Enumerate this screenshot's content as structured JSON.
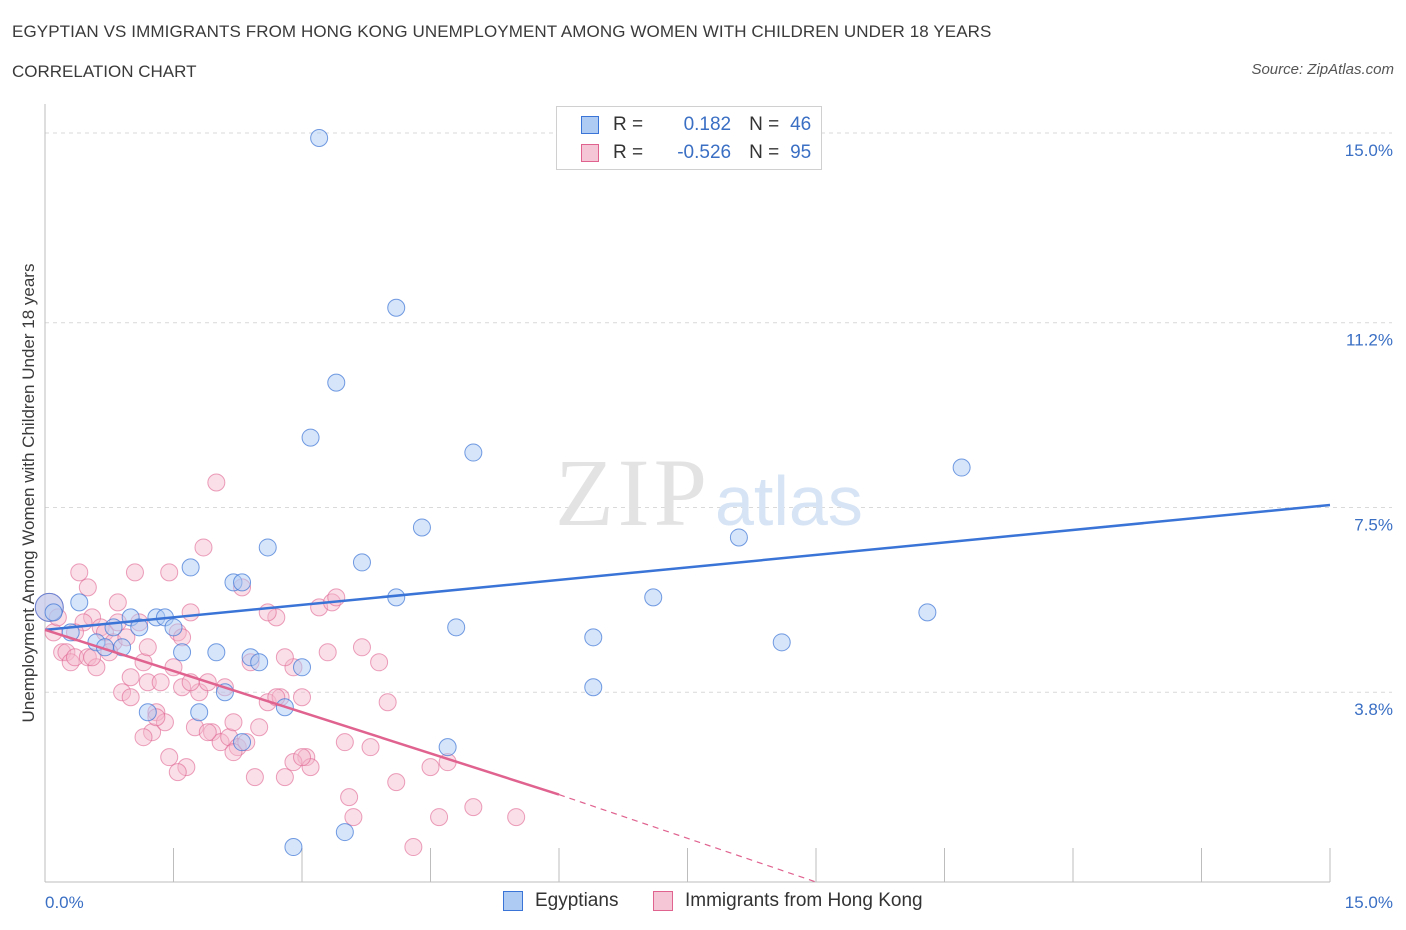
{
  "title": "EGYPTIAN VS IMMIGRANTS FROM HONG KONG UNEMPLOYMENT AMONG WOMEN WITH CHILDREN UNDER 18 YEARS",
  "subtitle": "CORRELATION CHART",
  "source": "Source: ZipAtlas.com",
  "watermark": {
    "zip": "ZIP",
    "atlas": "atlas"
  },
  "legend": {
    "rows": [
      {
        "r_label": "R =",
        "r_value": "0.182",
        "n_label": "N =",
        "n_value": "46"
      },
      {
        "r_label": "R =",
        "r_value": "-0.526",
        "n_label": "N =",
        "n_value": "95"
      }
    ]
  },
  "bottom_legend": {
    "egyptians": "Egyptians",
    "hongkong": "Immigrants from Hong Kong"
  },
  "colors": {
    "blue": "#3a74d6",
    "blue_fill": "#aecbf3",
    "pink": "#e0628f",
    "pink_fill": "#f5b7cb",
    "axis_text": "#3a6fc4",
    "grid": "#d9d9d9"
  },
  "chart_data": {
    "type": "scatter",
    "ylabel": "Unemployment Among Women with Children Under 18 years",
    "xlabel": "",
    "xlim": [
      0,
      15
    ],
    "ylim": [
      0,
      15.3
    ],
    "x_tick_labels": {
      "left": "0.0%",
      "right": "15.0%"
    },
    "y_ticks": [
      {
        "value": 15.0,
        "label": "15.0%"
      },
      {
        "value": 11.2,
        "label": "11.2%"
      },
      {
        "value": 7.5,
        "label": "7.5%"
      },
      {
        "value": 3.8,
        "label": "3.8%"
      }
    ],
    "series": [
      {
        "name": "Egyptians",
        "color": "#3a74d6",
        "points": [
          [
            0.05,
            5.5
          ],
          [
            0.1,
            5.4
          ],
          [
            0.3,
            5.0
          ],
          [
            0.4,
            5.6
          ],
          [
            0.6,
            4.8
          ],
          [
            0.7,
            4.7
          ],
          [
            0.8,
            5.1
          ],
          [
            1.0,
            5.3
          ],
          [
            1.1,
            5.1
          ],
          [
            1.3,
            5.3
          ],
          [
            1.4,
            5.3
          ],
          [
            1.5,
            5.1
          ],
          [
            1.7,
            6.3
          ],
          [
            2.0,
            4.6
          ],
          [
            2.2,
            6.0
          ],
          [
            2.3,
            6.0
          ],
          [
            2.1,
            3.8
          ],
          [
            2.3,
            2.8
          ],
          [
            2.4,
            4.5
          ],
          [
            2.6,
            6.7
          ],
          [
            2.8,
            3.5
          ],
          [
            3.0,
            4.3
          ],
          [
            3.1,
            8.9
          ],
          [
            3.2,
            14.9
          ],
          [
            3.4,
            10.0
          ],
          [
            3.5,
            1.0
          ],
          [
            3.7,
            6.4
          ],
          [
            4.1,
            11.5
          ],
          [
            4.1,
            5.7
          ],
          [
            4.4,
            7.1
          ],
          [
            4.7,
            2.7
          ],
          [
            4.8,
            5.1
          ],
          [
            5.0,
            8.6
          ],
          [
            6.4,
            3.9
          ],
          [
            6.4,
            4.9
          ],
          [
            7.1,
            5.7
          ],
          [
            8.1,
            6.9
          ],
          [
            8.6,
            4.8
          ],
          [
            10.3,
            5.4
          ],
          [
            10.7,
            8.3
          ],
          [
            2.9,
            0.7
          ],
          [
            0.9,
            4.7
          ],
          [
            1.6,
            4.6
          ],
          [
            1.2,
            3.4
          ],
          [
            1.8,
            3.4
          ],
          [
            2.5,
            4.4
          ]
        ],
        "trend": {
          "x0": 0,
          "y0": 5.05,
          "x1": 15,
          "y1": 7.55
        }
      },
      {
        "name": "Immigrants from Hong Kong",
        "color": "#e0628f",
        "points": [
          [
            0.05,
            5.5
          ],
          [
            0.1,
            5.0
          ],
          [
            0.15,
            5.3
          ],
          [
            0.2,
            4.6
          ],
          [
            0.25,
            4.6
          ],
          [
            0.3,
            4.4
          ],
          [
            0.35,
            4.5
          ],
          [
            0.4,
            6.2
          ],
          [
            0.5,
            4.5
          ],
          [
            0.5,
            5.9
          ],
          [
            0.55,
            5.3
          ],
          [
            0.6,
            4.3
          ],
          [
            0.65,
            5.1
          ],
          [
            0.7,
            5.0
          ],
          [
            0.8,
            4.8
          ],
          [
            0.85,
            5.6
          ],
          [
            0.9,
            3.8
          ],
          [
            0.95,
            4.9
          ],
          [
            1.0,
            3.7
          ],
          [
            1.05,
            6.2
          ],
          [
            1.1,
            5.2
          ],
          [
            1.15,
            4.4
          ],
          [
            1.2,
            4.0
          ],
          [
            1.25,
            3.0
          ],
          [
            1.3,
            3.4
          ],
          [
            1.35,
            4.0
          ],
          [
            1.4,
            3.2
          ],
          [
            1.45,
            6.2
          ],
          [
            1.5,
            4.3
          ],
          [
            1.55,
            5.0
          ],
          [
            1.6,
            3.9
          ],
          [
            1.65,
            2.3
          ],
          [
            1.7,
            5.4
          ],
          [
            1.75,
            3.1
          ],
          [
            1.8,
            3.8
          ],
          [
            1.85,
            6.7
          ],
          [
            1.9,
            4.0
          ],
          [
            1.95,
            3.0
          ],
          [
            2.0,
            8.0
          ],
          [
            2.05,
            2.8
          ],
          [
            2.1,
            3.9
          ],
          [
            2.15,
            2.9
          ],
          [
            2.2,
            3.2
          ],
          [
            2.25,
            2.7
          ],
          [
            2.3,
            5.9
          ],
          [
            2.4,
            4.4
          ],
          [
            2.5,
            3.1
          ],
          [
            2.6,
            3.6
          ],
          [
            2.7,
            5.3
          ],
          [
            2.75,
            3.7
          ],
          [
            2.8,
            2.1
          ],
          [
            2.9,
            4.3
          ],
          [
            3.0,
            3.7
          ],
          [
            3.05,
            2.5
          ],
          [
            3.1,
            2.3
          ],
          [
            3.2,
            5.5
          ],
          [
            3.3,
            4.6
          ],
          [
            3.35,
            5.6
          ],
          [
            3.4,
            5.7
          ],
          [
            3.5,
            2.8
          ],
          [
            3.55,
            1.7
          ],
          [
            3.6,
            1.3
          ],
          [
            3.7,
            4.7
          ],
          [
            3.9,
            4.4
          ],
          [
            4.0,
            3.6
          ],
          [
            4.1,
            2.0
          ],
          [
            4.5,
            2.3
          ],
          [
            4.7,
            2.4
          ],
          [
            4.3,
            0.7
          ],
          [
            4.6,
            1.3
          ],
          [
            5.0,
            1.5
          ],
          [
            5.5,
            1.3
          ],
          [
            0.45,
            5.2
          ],
          [
            0.75,
            4.6
          ],
          [
            1.0,
            4.1
          ],
          [
            1.3,
            3.3
          ],
          [
            1.6,
            4.9
          ],
          [
            2.2,
            2.6
          ],
          [
            2.6,
            5.4
          ],
          [
            2.9,
            2.4
          ],
          [
            3.0,
            2.5
          ],
          [
            1.15,
            2.9
          ],
          [
            1.45,
            2.5
          ],
          [
            1.55,
            2.2
          ],
          [
            1.9,
            3.0
          ],
          [
            2.35,
            2.8
          ],
          [
            2.7,
            3.7
          ],
          [
            2.45,
            2.1
          ],
          [
            0.35,
            5.0
          ],
          [
            0.55,
            4.5
          ],
          [
            0.85,
            5.2
          ],
          [
            1.2,
            4.7
          ],
          [
            1.7,
            4.0
          ],
          [
            2.8,
            4.5
          ],
          [
            3.8,
            2.7
          ]
        ],
        "trend": {
          "x0": 0,
          "y0": 5.05,
          "x1": 6.0,
          "y1": 1.75
        },
        "trend_dashed": {
          "x0": 6.0,
          "y0": 1.75,
          "x1": 9.0,
          "y1": 0.0
        }
      }
    ]
  }
}
